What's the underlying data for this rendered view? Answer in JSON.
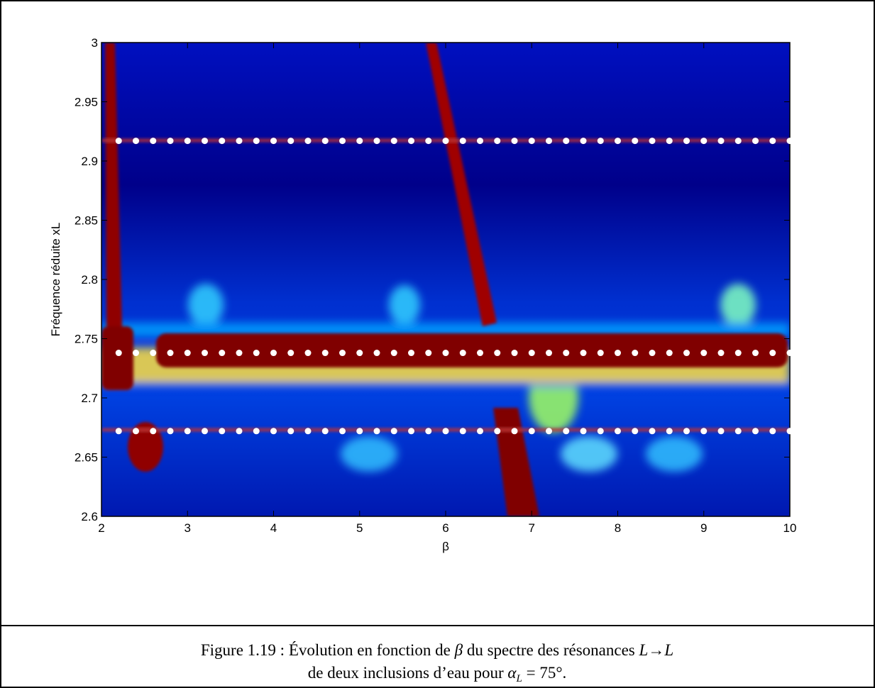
{
  "chart_data": {
    "type": "scatter",
    "xlabel": "β",
    "ylabel": "Fréquence réduite  xL",
    "xlim": [
      2,
      10
    ],
    "xticks": [
      2,
      3,
      4,
      5,
      6,
      7,
      8,
      9,
      10
    ],
    "ylim": [
      2.6,
      3
    ],
    "yticks": [
      2.6,
      2.65,
      2.7,
      2.75,
      2.8,
      2.85,
      2.9,
      2.95,
      3
    ],
    "x": [
      2.2,
      2.4,
      2.6,
      2.8,
      3,
      3.2,
      3.4,
      3.6,
      3.8,
      4,
      4.2,
      4.4,
      4.6,
      4.8,
      5,
      5.2,
      5.4,
      5.6,
      5.8,
      6,
      6.2,
      6.4,
      6.6,
      6.8,
      7,
      7.2,
      7.4,
      7.6,
      7.8,
      8,
      8.2,
      8.4,
      8.6,
      8.8,
      9,
      9.2,
      9.4,
      9.6,
      9.8,
      10
    ],
    "series": [
      {
        "color": "#ffffff",
        "values": [
          2.917,
          2.917,
          2.917,
          2.917,
          2.917,
          2.917,
          2.917,
          2.917,
          2.917,
          2.917,
          2.917,
          2.917,
          2.917,
          2.917,
          2.917,
          2.917,
          2.917,
          2.917,
          2.917,
          2.917,
          2.917,
          2.917,
          2.917,
          2.917,
          2.917,
          2.917,
          2.917,
          2.917,
          2.917,
          2.917,
          2.917,
          2.917,
          2.917,
          2.917,
          2.917,
          2.917,
          2.917,
          2.917,
          2.917,
          2.917
        ]
      },
      {
        "color": "#ffffff",
        "values": [
          2.738,
          2.738,
          2.738,
          2.738,
          2.738,
          2.738,
          2.738,
          2.738,
          2.738,
          2.738,
          2.738,
          2.738,
          2.738,
          2.738,
          2.738,
          2.738,
          2.738,
          2.738,
          2.738,
          2.738,
          2.738,
          2.738,
          2.738,
          2.738,
          2.738,
          2.738,
          2.738,
          2.738,
          2.738,
          2.738,
          2.738,
          2.738,
          2.738,
          2.738,
          2.738,
          2.738,
          2.738,
          2.738,
          2.738,
          2.738
        ]
      },
      {
        "color": "#ffffff",
        "values": [
          2.672,
          2.672,
          2.672,
          2.672,
          2.672,
          2.672,
          2.672,
          2.672,
          2.672,
          2.672,
          2.672,
          2.672,
          2.672,
          2.672,
          2.672,
          2.672,
          2.672,
          2.672,
          2.672,
          2.672,
          2.672,
          2.672,
          2.672,
          2.672,
          2.672,
          2.672,
          2.672,
          2.672,
          2.672,
          2.672,
          2.672,
          2.672,
          2.672,
          2.672,
          2.672,
          2.672,
          2.672,
          2.672,
          2.672,
          2.672
        ]
      }
    ]
  },
  "caption": {
    "line1": [
      "Figure 1.19 : Évolution en fonction de ",
      "β",
      " du spectre des résonances ",
      "L",
      "→",
      "L"
    ],
    "line2": [
      "de deux inclusions d’eau pour ",
      "α",
      "L",
      " = 75°."
    ]
  }
}
